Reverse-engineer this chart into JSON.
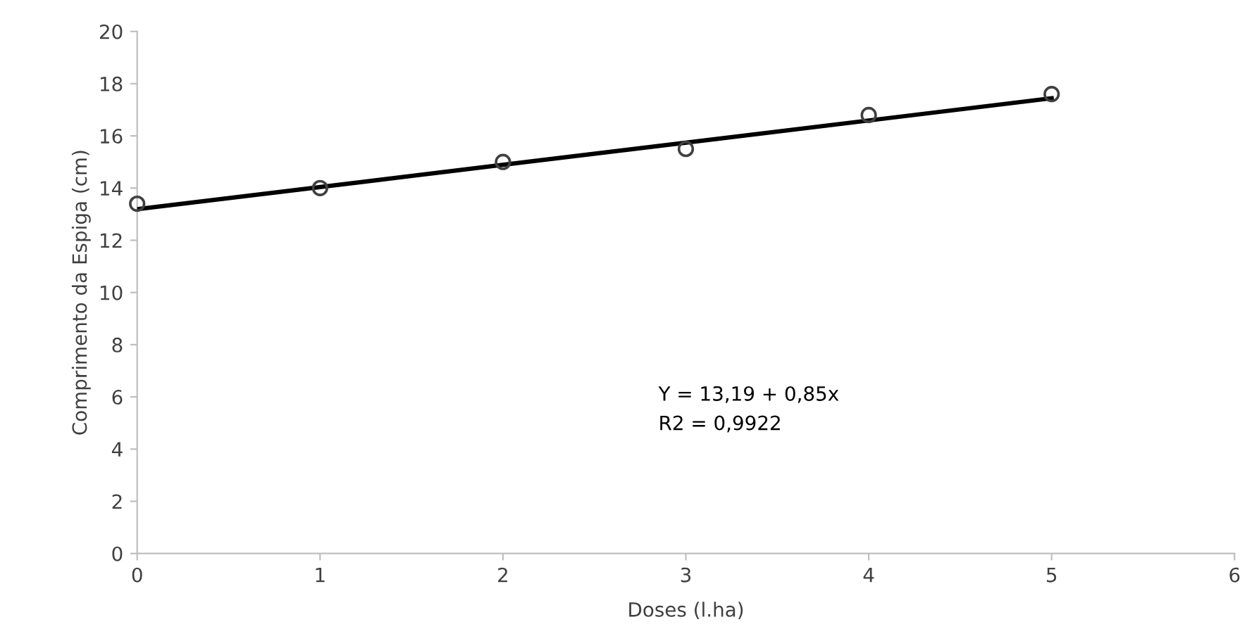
{
  "chart_data": {
    "type": "scatter",
    "xlabel": "Doses (l.ha)",
    "ylabel": "Comprimento da Espiga (cm)",
    "marker": "circle",
    "grid": false,
    "legend": false,
    "xlim": [
      0,
      6
    ],
    "xticks": [
      0,
      1,
      2,
      3,
      4,
      5,
      6
    ],
    "ylim": [
      0,
      20
    ],
    "yticks": [
      0,
      2,
      4,
      6,
      8,
      10,
      12,
      14,
      16,
      18,
      20
    ],
    "annotations": [
      "Y = 13,19 + 0,85x\nR2 = 0,9922"
    ],
    "series": [
      {
        "color": "#404040",
        "x": [
          0,
          1,
          2,
          3,
          4,
          5
        ],
        "values": [
          13.4,
          14.0,
          15.0,
          15.5,
          16.8,
          17.6
        ]
      },
      {
        "type": "line",
        "color": "#000000",
        "marker": "none",
        "line_style": "solid",
        "x": [
          0,
          5
        ],
        "values": [
          13.19,
          17.44
        ]
      }
    ]
  }
}
